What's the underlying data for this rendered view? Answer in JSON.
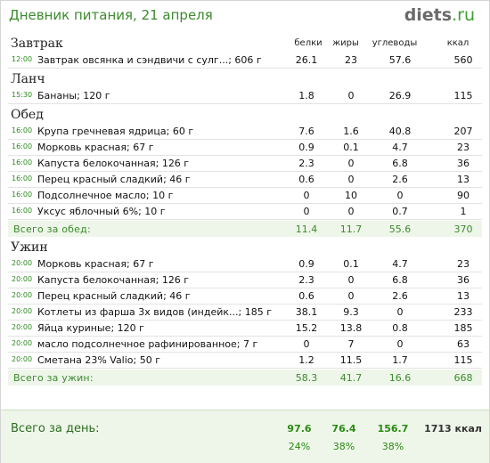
{
  "header": {
    "title": "Дневник питания, 21 апреля",
    "logo_main": "diets",
    "logo_tld": ".ru"
  },
  "columns": {
    "protein": "белки",
    "fat": "жиры",
    "carbs": "углеводы",
    "kcal": "ккал"
  },
  "meals": [
    {
      "name": "Завтрак",
      "items": [
        {
          "time": "12:00",
          "food": "Завтрак овсянка и сэндвичи с сулг...; 606 г",
          "p": "26.1",
          "f": "23",
          "c": "57.6",
          "k": "560"
        }
      ]
    },
    {
      "name": "Ланч",
      "items": [
        {
          "time": "15:30",
          "food": "Бананы; 120 г",
          "p": "1.8",
          "f": "0",
          "c": "26.9",
          "k": "115"
        }
      ]
    },
    {
      "name": "Обед",
      "items": [
        {
          "time": "16:00",
          "food": "Крупа гречневая ядрица; 60 г",
          "p": "7.6",
          "f": "1.6",
          "c": "40.8",
          "k": "207"
        },
        {
          "time": "16:00",
          "food": "Морковь красная; 67 г",
          "p": "0.9",
          "f": "0.1",
          "c": "4.7",
          "k": "23"
        },
        {
          "time": "16:00",
          "food": "Капуста белокочанная; 126 г",
          "p": "2.3",
          "f": "0",
          "c": "6.8",
          "k": "36"
        },
        {
          "time": "16:00",
          "food": "Перец красный сладкий; 46 г",
          "p": "0.6",
          "f": "0",
          "c": "2.6",
          "k": "13"
        },
        {
          "time": "16:00",
          "food": "Подсолнечное масло; 10 г",
          "p": "0",
          "f": "10",
          "c": "0",
          "k": "90"
        },
        {
          "time": "16:00",
          "food": "Уксус яблочный 6%; 10 г",
          "p": "0",
          "f": "0",
          "c": "0.7",
          "k": "1"
        }
      ],
      "total": {
        "label": "Всего за обед:",
        "p": "11.4",
        "f": "11.7",
        "c": "55.6",
        "k": "370"
      }
    },
    {
      "name": "Ужин",
      "items": [
        {
          "time": "20:00",
          "food": "Морковь красная; 67 г",
          "p": "0.9",
          "f": "0.1",
          "c": "4.7",
          "k": "23"
        },
        {
          "time": "20:00",
          "food": "Капуста белокочанная; 126 г",
          "p": "2.3",
          "f": "0",
          "c": "6.8",
          "k": "36"
        },
        {
          "time": "20:00",
          "food": "Перец красный сладкий; 46 г",
          "p": "0.6",
          "f": "0",
          "c": "2.6",
          "k": "13"
        },
        {
          "time": "20:00",
          "food": "Котлеты из фарша 3х видов (индейк...; 185 г",
          "p": "38.1",
          "f": "9.3",
          "c": "0",
          "k": "233"
        },
        {
          "time": "20:00",
          "food": "Яйца куриные; 120 г",
          "p": "15.2",
          "f": "13.8",
          "c": "0.8",
          "k": "185"
        },
        {
          "time": "20:00",
          "food": "масло подсолнечное рафинированное; 7 г",
          "p": "0",
          "f": "7",
          "c": "0",
          "k": "63"
        },
        {
          "time": "20:00",
          "food": "Сметана 23% Valio; 50 г",
          "p": "1.2",
          "f": "11.5",
          "c": "1.7",
          "k": "115"
        }
      ],
      "total": {
        "label": "Всего за ужин:",
        "p": "58.3",
        "f": "41.7",
        "c": "16.6",
        "k": "668"
      }
    }
  ],
  "day_total": {
    "label": "Всего за день:",
    "p": "97.6",
    "f": "76.4",
    "c": "156.7",
    "k": "1713 ккал",
    "p_pct": "24%",
    "f_pct": "38%",
    "c_pct": "38%"
  }
}
